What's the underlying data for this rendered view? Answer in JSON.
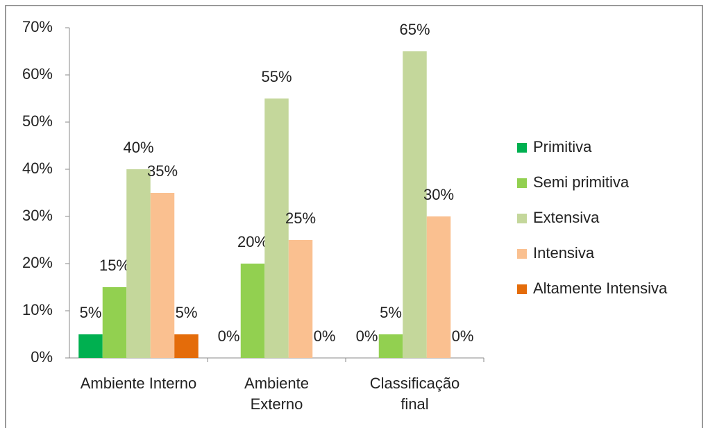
{
  "chart_data": {
    "type": "bar",
    "categories": [
      "Ambiente Interno",
      "Ambiente Externo",
      "Classificação final"
    ],
    "series": [
      {
        "name": "Primitiva",
        "color": "#00b050",
        "values": [
          5,
          0,
          0
        ],
        "value_labels": [
          "5%",
          "0%",
          "0%"
        ]
      },
      {
        "name": "Semi primitiva",
        "color": "#92d050",
        "values": [
          15,
          20,
          5
        ],
        "value_labels": [
          "15%",
          "20%",
          "5%"
        ]
      },
      {
        "name": "Extensiva",
        "color": "#c4d79b",
        "values": [
          40,
          55,
          65
        ],
        "value_labels": [
          "40%",
          "55%",
          "65%"
        ]
      },
      {
        "name": "Intensiva",
        "color": "#fac090",
        "values": [
          35,
          25,
          30
        ],
        "value_labels": [
          "35%",
          "25%",
          "30%"
        ]
      },
      {
        "name": "Altamente Intensiva",
        "color": "#e46c0a",
        "values": [
          5,
          0,
          0
        ],
        "value_labels": [
          "5%",
          "0%",
          "0%"
        ]
      }
    ],
    "ylim": [
      0,
      70
    ],
    "yticks": [
      {
        "value": 0,
        "label": "0%"
      },
      {
        "value": 10,
        "label": "10%"
      },
      {
        "value": 20,
        "label": "20%"
      },
      {
        "value": 30,
        "label": "30%"
      },
      {
        "value": 40,
        "label": "40%"
      },
      {
        "value": 50,
        "label": "50%"
      },
      {
        "value": 60,
        "label": "60%"
      },
      {
        "value": 70,
        "label": "70%"
      }
    ],
    "grid": false,
    "legend": "right"
  }
}
